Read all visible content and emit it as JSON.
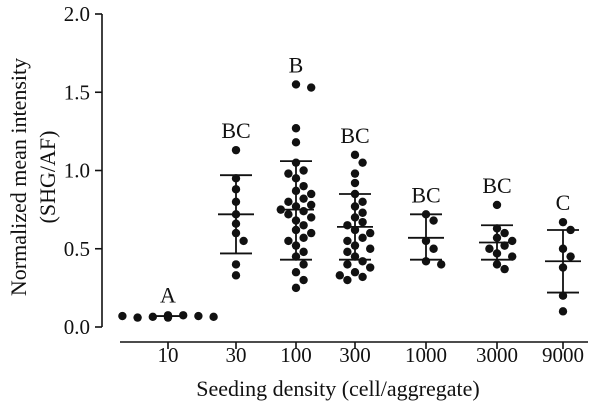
{
  "chart_data": {
    "type": "scatter",
    "xlabel": "Seeding density (cell/aggregate)",
    "ylabel_lines": [
      "Normalized mean intensity",
      "(SHG/AF)"
    ],
    "ylim": [
      0,
      2.0
    ],
    "yticks": [
      "0.0",
      "0.5",
      "1.0",
      "1.5",
      "2.0"
    ],
    "grid": false,
    "categories": [
      "10",
      "30",
      "100",
      "300",
      "1000",
      "3000",
      "9000"
    ],
    "groups": [
      {
        "category": "10",
        "letter": "A",
        "mean": 0.07,
        "sd_low": 0.06,
        "sd_high": 0.08,
        "points": [
          0.07,
          0.075,
          0.065,
          0.07,
          0.06,
          0.065,
          0.07,
          0.075,
          0.07,
          0.06
        ]
      },
      {
        "category": "30",
        "letter": "BC",
        "mean": 0.72,
        "sd_low": 0.47,
        "sd_high": 0.97,
        "points": [
          1.13,
          0.95,
          0.88,
          0.8,
          0.72,
          0.66,
          0.6,
          0.55,
          0.4,
          0.33
        ]
      },
      {
        "category": "100",
        "letter": "B",
        "mean": 0.75,
        "sd_low": 0.43,
        "sd_high": 1.06,
        "points": [
          1.55,
          1.53,
          1.27,
          1.18,
          1.05,
          1.0,
          0.98,
          0.95,
          0.9,
          0.87,
          0.85,
          0.82,
          0.8,
          0.78,
          0.77,
          0.75,
          0.74,
          0.72,
          0.7,
          0.68,
          0.65,
          0.62,
          0.6,
          0.57,
          0.55,
          0.52,
          0.48,
          0.45,
          0.4,
          0.35,
          0.3,
          0.25
        ]
      },
      {
        "category": "300",
        "letter": "BC",
        "mean": 0.64,
        "sd_low": 0.43,
        "sd_high": 0.85,
        "points": [
          1.1,
          1.05,
          0.98,
          0.92,
          0.85,
          0.8,
          0.77,
          0.73,
          0.7,
          0.67,
          0.65,
          0.62,
          0.6,
          0.57,
          0.55,
          0.52,
          0.5,
          0.48,
          0.45,
          0.42,
          0.4,
          0.38,
          0.35,
          0.33,
          0.32,
          0.3
        ]
      },
      {
        "category": "1000",
        "letter": "BC",
        "mean": 0.57,
        "sd_low": 0.43,
        "sd_high": 0.72,
        "points": [
          0.72,
          0.68,
          0.55,
          0.5,
          0.42,
          0.4
        ]
      },
      {
        "category": "3000",
        "letter": "BC",
        "mean": 0.54,
        "sd_low": 0.43,
        "sd_high": 0.65,
        "points": [
          0.78,
          0.63,
          0.6,
          0.57,
          0.55,
          0.52,
          0.5,
          0.47,
          0.45,
          0.4,
          0.37
        ]
      },
      {
        "category": "9000",
        "letter": "C",
        "mean": 0.42,
        "sd_low": 0.22,
        "sd_high": 0.62,
        "points": [
          0.67,
          0.62,
          0.5,
          0.45,
          0.38,
          0.2,
          0.1
        ]
      }
    ]
  }
}
